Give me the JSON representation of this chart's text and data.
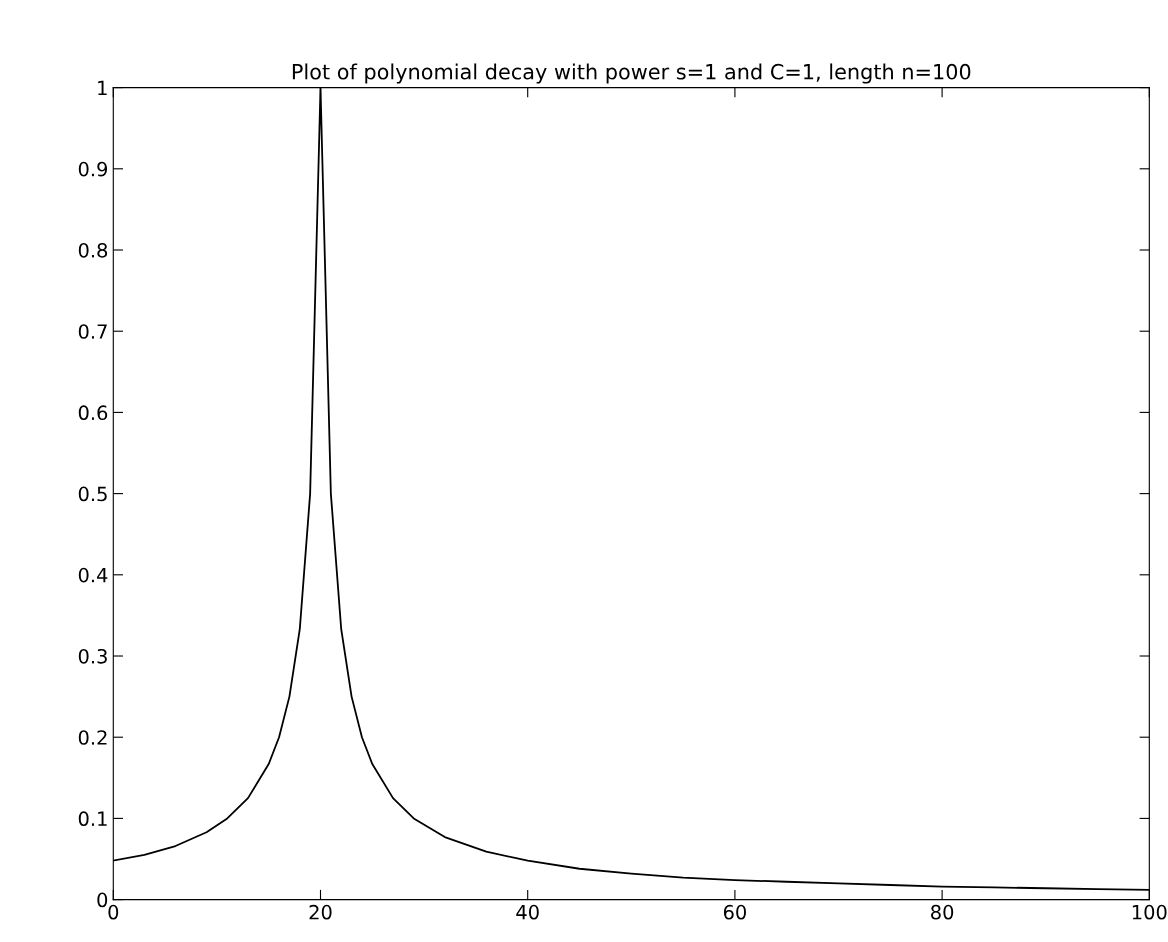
{
  "chart_data": {
    "type": "line",
    "title": "Plot of polynomial decay with power s=1 and C=1, length n=100",
    "series": [
      {
        "color": "#000000",
        "x": [
          0,
          3,
          6,
          9,
          11,
          13,
          15,
          16,
          17,
          18,
          19,
          20,
          21,
          22,
          23,
          24,
          25,
          27,
          29,
          32,
          36,
          40,
          45,
          50,
          55,
          60,
          65,
          70,
          75,
          80,
          85,
          90,
          95,
          100
        ],
        "values": [
          0.048,
          0.055,
          0.066,
          0.083,
          0.1,
          0.125,
          0.167,
          0.2,
          0.25,
          0.333,
          0.5,
          1,
          0.5,
          0.333,
          0.25,
          0.2,
          0.167,
          0.125,
          0.1,
          0.077,
          0.059,
          0.048,
          0.038,
          0.032,
          0.027,
          0.024,
          0.022,
          0.02,
          0.018,
          0.016,
          0.015,
          0.014,
          0.013,
          0.012
        ]
      }
    ],
    "xlim": [
      0,
      100
    ],
    "xticks": [
      0,
      20,
      40,
      60,
      80,
      100
    ],
    "ylim": [
      0,
      1
    ],
    "yticks": [
      0,
      0.1,
      0.2,
      0.3,
      0.4,
      0.5,
      0.6,
      0.7,
      0.8,
      0.9,
      1
    ],
    "grid": false,
    "legend": false,
    "marker": "none",
    "line_style": "solid"
  }
}
